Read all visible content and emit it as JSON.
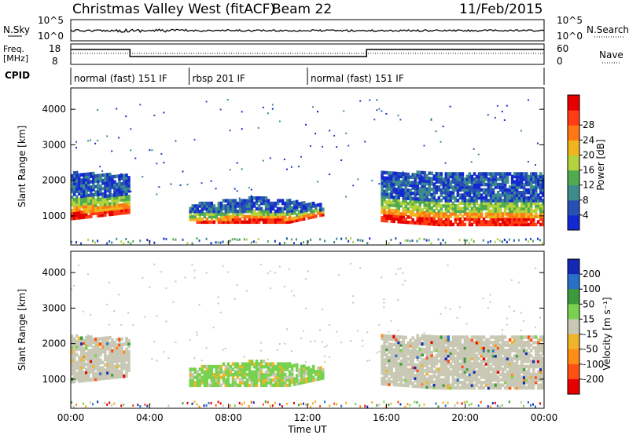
{
  "header": {
    "station": "Christmas Valley West (fitACF)",
    "beam": "Beam 22",
    "date": "11/Feb/2015"
  },
  "top_panels": {
    "nsky_label": "N.Sky",
    "nsearch_label": "N.Search",
    "nsky_ticks": [
      "10^5",
      "10^0"
    ],
    "nsearch_ticks": [
      "10^5",
      "10^0"
    ],
    "freq_label_1": "Freq.",
    "freq_label_2": "[MHz]",
    "freq_ticks": [
      "18",
      "8"
    ],
    "nave_label": "Nave",
    "nave_ticks": [
      "60",
      "0"
    ],
    "cpid_label": "CPID",
    "cpid_segments": [
      {
        "label": "normal (fast) 151 IF",
        "start": 0,
        "end": 6
      },
      {
        "label": "rbsp 201 IF",
        "start": 6,
        "end": 12
      },
      {
        "label": "normal (fast) 151 IF",
        "start": 12,
        "end": 24
      }
    ]
  },
  "chart_data": [
    {
      "type": "heatmap",
      "title": "",
      "ylabel": "Slant Range [km]",
      "xlabel": "Time UT",
      "xlim": [
        0,
        24
      ],
      "ylim": [
        180,
        4600
      ],
      "yticks": [
        "1000",
        "2000",
        "3000",
        "4000"
      ],
      "colorbar": {
        "label": "Power [dB]",
        "ticks": [
          "4",
          "8",
          "12",
          "16",
          "20",
          "24",
          "28"
        ],
        "colors": [
          "#1428d2",
          "#2850b4",
          "#3c8c8c",
          "#50aa50",
          "#b4d23c",
          "#f0b41e",
          "#ff7814",
          "#ff3c14",
          "#e60000"
        ]
      },
      "echo_regions_description": "Power echoes",
      "regions": [
        {
          "t0": 0.0,
          "t1": 3.0,
          "r0": 900,
          "r1": 2200,
          "level": "mixed"
        },
        {
          "t0": 6.0,
          "t1": 12.8,
          "r0": 800,
          "r1": 1500,
          "level": "mixed"
        },
        {
          "t0": 15.6,
          "t1": 24.0,
          "r0": 850,
          "r1": 2200,
          "level": "mixed"
        }
      ]
    },
    {
      "type": "heatmap",
      "title": "",
      "ylabel": "Slant Range [km]",
      "xlabel": "Time UT",
      "xlim": [
        0,
        24
      ],
      "ylim": [
        180,
        4600
      ],
      "yticks": [
        "1000",
        "2000",
        "3000",
        "4000"
      ],
      "colorbar": {
        "label": "Velocity [m s⁻¹]",
        "ticks": [
          "200",
          "100",
          "50",
          "15",
          "-15",
          "-50",
          "-100",
          "-200"
        ],
        "colors": [
          "#1428b4",
          "#2870c8",
          "#3c9a3c",
          "#78d250",
          "#c8c8b4",
          "#f0b428",
          "#ff8c14",
          "#ff5014",
          "#e60000"
        ]
      },
      "regions": [
        {
          "t0": 0.0,
          "t1": 3.0,
          "r0": 900,
          "r1": 2200,
          "level": "ground"
        },
        {
          "t0": 6.0,
          "t1": 12.8,
          "r0": 800,
          "r1": 1500,
          "level": "positive"
        },
        {
          "t0": 15.6,
          "t1": 24.0,
          "r0": 850,
          "r1": 2200,
          "level": "ground"
        }
      ]
    }
  ],
  "x_axis": {
    "label": "Time UT",
    "ticks": [
      "00:00",
      "04:00",
      "08:00",
      "12:00",
      "16:00",
      "20:00",
      "00:00"
    ]
  }
}
